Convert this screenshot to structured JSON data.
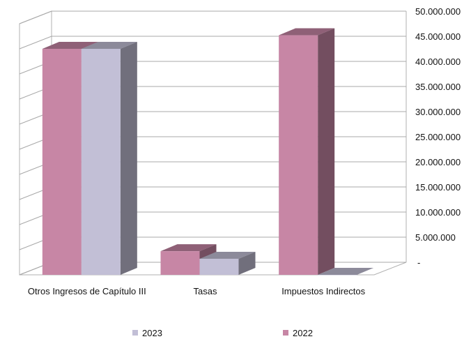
{
  "chart_data": {
    "type": "bar",
    "style": "3d-clustered",
    "categories": [
      "Otros Ingresos de Capítulo III",
      "Tasas",
      "Impuestos Indirectos"
    ],
    "series": [
      {
        "name": "2022",
        "color": "#c786a5",
        "values": [
          45000000,
          4700000,
          47700000
        ]
      },
      {
        "name": "2023",
        "color": "#c2bfd6",
        "values": [
          45000000,
          3200000,
          0
        ]
      }
    ],
    "legend_order": [
      "2023",
      "2022"
    ],
    "ylim": [
      0,
      50000000
    ],
    "y_ticks": [
      {
        "value": 0,
        "label": "-"
      },
      {
        "value": 5000000,
        "label": "5.000.000"
      },
      {
        "value": 10000000,
        "label": "10.000.000"
      },
      {
        "value": 15000000,
        "label": "15.000.000"
      },
      {
        "value": 20000000,
        "label": "20.000.000"
      },
      {
        "value": 25000000,
        "label": "25.000.000"
      },
      {
        "value": 30000000,
        "label": "30.000.000"
      },
      {
        "value": 35000000,
        "label": "35.000.000"
      },
      {
        "value": 40000000,
        "label": "40.000.000"
      },
      {
        "value": 45000000,
        "label": "45.000.000"
      },
      {
        "value": 50000000,
        "label": "50.000.000"
      }
    ],
    "y_axis_position": "right",
    "grid": true,
    "legend_position": "bottom",
    "title": "",
    "xlabel": "",
    "ylabel": ""
  }
}
